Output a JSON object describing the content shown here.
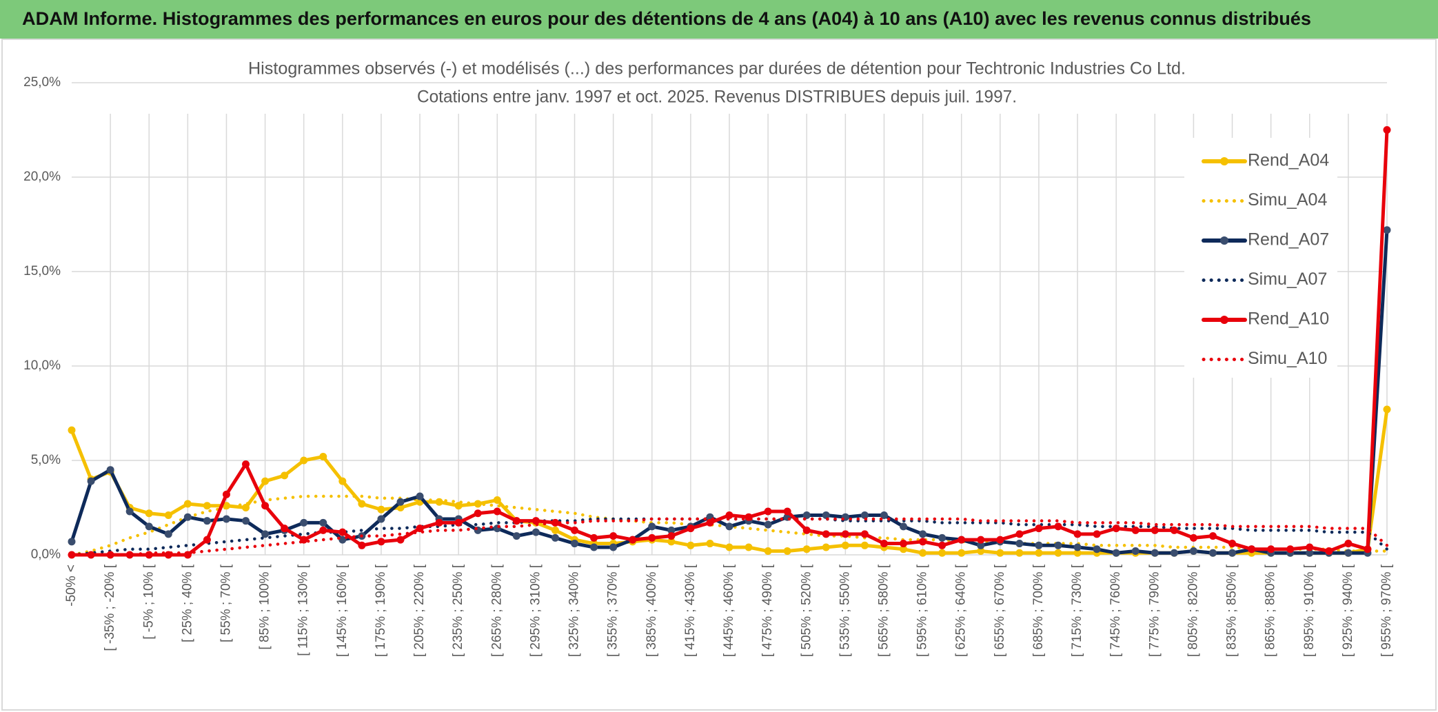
{
  "header": {
    "title": "ADAM Informe. Histogrammes des performances en euros pour des détentions de 4 ans (A04) à 10 ans (A10) avec les revenus connus distribués"
  },
  "chart_data": {
    "type": "line",
    "title": "Histogrammes observés (-) et modélisés (...) des performances par durées de détention pour Techtronic Industries Co Ltd.",
    "subtitle": "Cotations entre janv. 1997 et oct. 2025. Revenus DISTRIBUES depuis juil. 1997.",
    "categories": [
      "-50% <",
      null,
      "[ -35% ; -20% [",
      null,
      "[ -5% ; 10% [",
      null,
      "[ 25% ; 40% [",
      null,
      "[ 55% ; 70% [",
      null,
      "[ 85% ; 100% [",
      null,
      "[ 115% ; 130% [",
      null,
      "[ 145% ; 160% [",
      null,
      "[ 175% ; 190% [",
      null,
      "[ 205% ; 220% [",
      null,
      "[ 235% ; 250% [",
      null,
      "[ 265% ; 280% [",
      null,
      "[ 295% ; 310% [",
      null,
      "[ 325% ; 340% [",
      null,
      "[ 355% ; 370% [",
      null,
      "[ 385% ; 400% [",
      null,
      "[ 415% ; 430% [",
      null,
      "[ 445% ; 460% [",
      null,
      "[ 475% ; 490% [",
      null,
      "[ 505% ; 520% [",
      null,
      "[ 535% ; 550% [",
      null,
      "[ 565% ; 580% [",
      null,
      "[ 595% ; 610% [",
      null,
      "[ 625% ; 640% [",
      null,
      "[ 655% ; 670% [",
      null,
      "[ 685% ; 700% [",
      null,
      "[ 715% ; 730% [",
      null,
      "[ 745% ; 760% [",
      null,
      "[ 775% ; 790% [",
      null,
      "[ 805% ; 820% [",
      null,
      "[ 835% ; 850% [",
      null,
      "[ 865% ; 880% [",
      null,
      "[ 895% ; 910% [",
      null,
      "[ 925% ; 940% [",
      null,
      "[ 955% ; 970% ["
    ],
    "series": [
      {
        "name": "Rend_A04",
        "color": "#f5c000",
        "line_style": "solid",
        "markers": true,
        "values": [
          6.6,
          4.0,
          4.4,
          2.5,
          2.2,
          2.1,
          2.7,
          2.6,
          2.6,
          2.5,
          3.9,
          4.2,
          5.0,
          5.2,
          3.9,
          2.7,
          2.4,
          2.5,
          2.8,
          2.8,
          2.6,
          2.7,
          2.9,
          1.8,
          1.7,
          1.3,
          0.8,
          0.6,
          0.6,
          0.7,
          0.8,
          0.7,
          0.5,
          0.6,
          0.4,
          0.4,
          0.2,
          0.2,
          0.3,
          0.4,
          0.5,
          0.5,
          0.4,
          0.3,
          0.1,
          0.1,
          0.1,
          0.2,
          0.1,
          0.1,
          0.1,
          0.1,
          0.1,
          0.1,
          0.1,
          0.1,
          0.1,
          0.1,
          0.2,
          0.1,
          0.1,
          0.1,
          0.1,
          0.1,
          0.1,
          0.1,
          0.1,
          0.3,
          7.7
        ]
      },
      {
        "name": "Simu_A04",
        "color": "#f5c000",
        "line_style": "dotted",
        "markers": false,
        "values": [
          0.0,
          0.2,
          0.5,
          0.9,
          1.2,
          1.6,
          2.0,
          2.3,
          2.5,
          2.7,
          2.9,
          3.0,
          3.1,
          3.1,
          3.1,
          3.1,
          3.0,
          3.0,
          2.9,
          2.9,
          2.8,
          2.7,
          2.6,
          2.5,
          2.4,
          2.3,
          2.2,
          2.0,
          1.9,
          1.8,
          1.7,
          1.7,
          1.6,
          1.6,
          1.5,
          1.4,
          1.3,
          1.2,
          1.1,
          1.0,
          1.0,
          0.9,
          0.9,
          0.8,
          0.8,
          0.8,
          0.7,
          0.7,
          0.7,
          0.6,
          0.6,
          0.6,
          0.6,
          0.5,
          0.5,
          0.5,
          0.5,
          0.4,
          0.4,
          0.4,
          0.4,
          0.3,
          0.3,
          0.3,
          0.3,
          0.3,
          0.2,
          0.2,
          0.2
        ]
      },
      {
        "name": "Rend_A07",
        "color": "#0e2a5a",
        "line_style": "solid",
        "markers": true,
        "values": [
          0.7,
          3.9,
          4.5,
          2.3,
          1.5,
          1.1,
          2.0,
          1.8,
          1.9,
          1.8,
          1.1,
          1.3,
          1.7,
          1.7,
          0.8,
          1.0,
          1.9,
          2.8,
          3.1,
          1.9,
          1.9,
          1.3,
          1.4,
          1.0,
          1.2,
          0.9,
          0.6,
          0.4,
          0.4,
          0.8,
          1.5,
          1.3,
          1.5,
          2.0,
          1.5,
          1.8,
          1.6,
          2.0,
          2.1,
          2.1,
          2.0,
          2.1,
          2.1,
          1.5,
          1.1,
          0.9,
          0.8,
          0.5,
          0.7,
          0.6,
          0.5,
          0.5,
          0.4,
          0.3,
          0.1,
          0.2,
          0.1,
          0.1,
          0.2,
          0.1,
          0.1,
          0.3,
          0.1,
          0.1,
          0.1,
          0.1,
          0.1,
          0.1,
          17.2
        ]
      },
      {
        "name": "Simu_A07",
        "color": "#0e2a5a",
        "line_style": "dotted",
        "markers": false,
        "values": [
          0.0,
          0.1,
          0.2,
          0.3,
          0.3,
          0.4,
          0.5,
          0.6,
          0.7,
          0.8,
          0.9,
          1.0,
          1.1,
          1.2,
          1.2,
          1.3,
          1.4,
          1.4,
          1.5,
          1.5,
          1.6,
          1.6,
          1.7,
          1.7,
          1.8,
          1.8,
          1.8,
          1.9,
          1.9,
          1.9,
          1.9,
          1.9,
          1.9,
          1.9,
          1.9,
          1.9,
          1.9,
          1.9,
          1.9,
          1.9,
          1.8,
          1.8,
          1.8,
          1.8,
          1.8,
          1.7,
          1.7,
          1.7,
          1.7,
          1.6,
          1.6,
          1.6,
          1.6,
          1.5,
          1.5,
          1.5,
          1.5,
          1.4,
          1.4,
          1.4,
          1.4,
          1.3,
          1.3,
          1.3,
          1.3,
          1.2,
          1.2,
          1.2,
          0.3
        ]
      },
      {
        "name": "Rend_A10",
        "color": "#e8000b",
        "line_style": "solid",
        "markers": true,
        "values": [
          0.0,
          0.0,
          0.0,
          0.0,
          0.0,
          0.0,
          0.0,
          0.8,
          3.2,
          4.8,
          2.6,
          1.4,
          0.8,
          1.3,
          1.2,
          0.5,
          0.7,
          0.8,
          1.4,
          1.7,
          1.7,
          2.2,
          2.3,
          1.8,
          1.8,
          1.7,
          1.3,
          0.9,
          1.0,
          0.8,
          0.9,
          1.0,
          1.4,
          1.7,
          2.1,
          2.0,
          2.3,
          2.3,
          1.3,
          1.1,
          1.1,
          1.1,
          0.6,
          0.6,
          0.7,
          0.5,
          0.8,
          0.8,
          0.8,
          1.1,
          1.4,
          1.5,
          1.1,
          1.1,
          1.4,
          1.3,
          1.3,
          1.3,
          0.9,
          1.0,
          0.6,
          0.3,
          0.3,
          0.3,
          0.4,
          0.2,
          0.6,
          0.3,
          22.5
        ]
      },
      {
        "name": "Simu_A10",
        "color": "#e8000b",
        "line_style": "dotted",
        "markers": false,
        "values": [
          0.0,
          0.0,
          0.0,
          0.0,
          0.1,
          0.1,
          0.1,
          0.2,
          0.3,
          0.4,
          0.5,
          0.6,
          0.7,
          0.8,
          0.9,
          1.0,
          1.0,
          1.1,
          1.2,
          1.3,
          1.3,
          1.4,
          1.5,
          1.5,
          1.6,
          1.7,
          1.7,
          1.8,
          1.8,
          1.8,
          1.9,
          1.9,
          1.9,
          1.9,
          1.9,
          1.9,
          1.9,
          1.9,
          1.9,
          1.9,
          1.9,
          1.9,
          1.9,
          1.9,
          1.9,
          1.9,
          1.9,
          1.8,
          1.8,
          1.8,
          1.8,
          1.8,
          1.7,
          1.7,
          1.7,
          1.7,
          1.6,
          1.6,
          1.6,
          1.6,
          1.5,
          1.5,
          1.5,
          1.5,
          1.5,
          1.4,
          1.4,
          1.4,
          0.5
        ]
      }
    ],
    "ylim": [
      0,
      25
    ],
    "yticks": [
      {
        "value": 0,
        "label": "0,0%"
      },
      {
        "value": 5,
        "label": "5,0%"
      },
      {
        "value": 10,
        "label": "10,0%"
      },
      {
        "value": 15,
        "label": "15,0%"
      },
      {
        "value": 20,
        "label": "20,0%"
      },
      {
        "value": 25,
        "label": "25,0%"
      }
    ],
    "grid": true,
    "legend": "right"
  }
}
